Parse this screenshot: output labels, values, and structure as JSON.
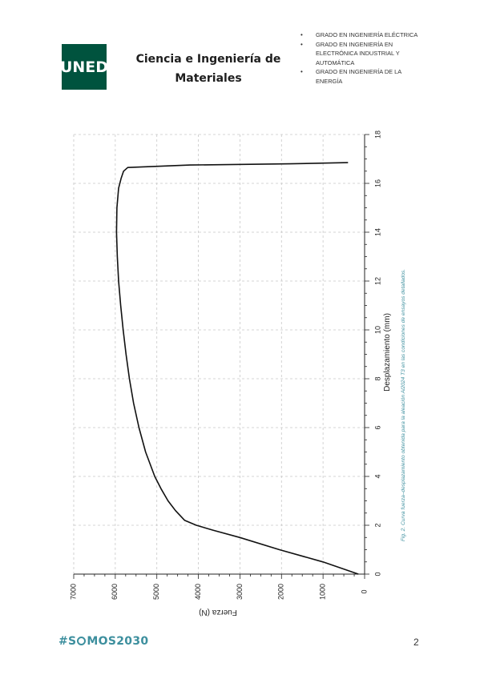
{
  "header": {
    "logo_text": "UNED",
    "title_line1": "Ciencia e Ingeniería de",
    "title_line2": "Materiales",
    "programs": [
      "GRADO EN INGENIERÍA ELÉCTRICA",
      "GRADO EN INGENIERÍA EN ELECTRÓNICA INDUSTRIAL Y AUTOMÁTICA",
      "GRADO EN INGENIERÍA DE LA ENERGÍA"
    ]
  },
  "figure": {
    "caption": "Fig. 2. Curva fuerza–desplazamiento obtenida para la aleación Al2024 T3 en las condiciones de ensayos detallados.",
    "caption_color": "#3d8f9e"
  },
  "chart_data": {
    "type": "line",
    "orientation": "rotated-90",
    "xlabel": "Desplazamiento (mm)",
    "ylabel": "Fuerza (N)",
    "xlim": [
      0,
      18
    ],
    "ylim": [
      0,
      7000
    ],
    "x_ticks": [
      0,
      2,
      4,
      6,
      8,
      10,
      12,
      14,
      16,
      18
    ],
    "y_ticks": [
      0,
      1000,
      2000,
      3000,
      4000,
      5000,
      6000,
      7000
    ],
    "grid": true,
    "series": [
      {
        "x": [
          0,
          0.5,
          1.0,
          1.5,
          1.8,
          2.0,
          2.2,
          2.6,
          3.0,
          3.5,
          4.0,
          5.0,
          6.0,
          7.0,
          8.0,
          9.0,
          10.0,
          11.0,
          12.0,
          13.0,
          14.0,
          15.0,
          15.8,
          16.2,
          16.5,
          16.65,
          16.75,
          16.8,
          16.85
        ],
        "y": [
          150,
          1000,
          2050,
          3000,
          3650,
          4050,
          4330,
          4550,
          4730,
          4900,
          5050,
          5270,
          5430,
          5560,
          5660,
          5740,
          5810,
          5870,
          5920,
          5950,
          5970,
          5960,
          5920,
          5860,
          5800,
          5700,
          4200,
          1800,
          400
        ]
      }
    ]
  },
  "footer": {
    "hashtag_prefix": "#S",
    "hashtag_suffix": "MOS2030",
    "page_number": "2"
  }
}
